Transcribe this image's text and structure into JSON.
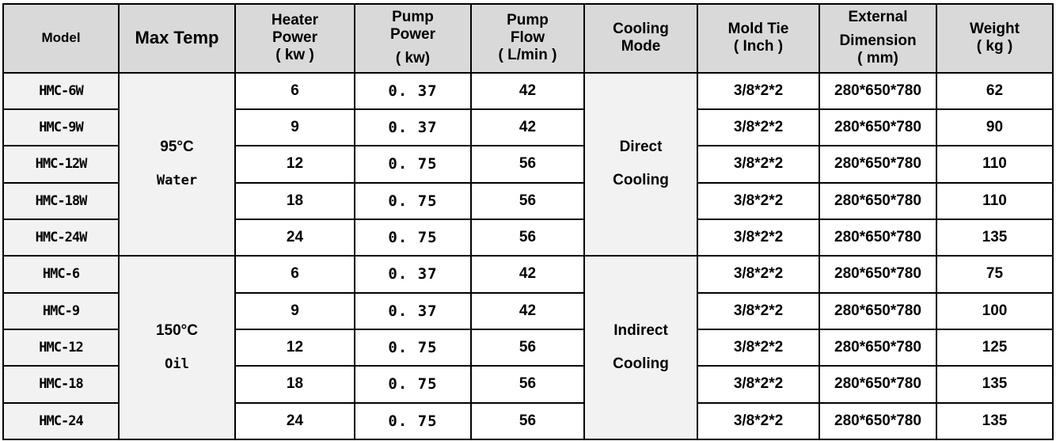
{
  "headers": {
    "model": "Model",
    "max_temp": "Max Temp",
    "heater_power": [
      "Heater",
      "Power",
      "( kw )"
    ],
    "pump_power": [
      "Pump",
      "Power",
      "( kw)"
    ],
    "pump_flow": [
      "Pump",
      "Flow",
      "( L/min )"
    ],
    "cooling_mode": [
      "Cooling",
      "Mode"
    ],
    "mold_tie": [
      "Mold Tie",
      "( Inch )"
    ],
    "external_dimension": [
      "External",
      "Dimension",
      "( mm)"
    ],
    "weight": [
      "Weight",
      "( kg )"
    ]
  },
  "groups": {
    "water": {
      "temp": "95°C",
      "medium": "Water",
      "cooling_line1": "Direct",
      "cooling_line2": "Cooling"
    },
    "oil": {
      "temp": "150°C",
      "medium": "Oil",
      "cooling_line1": "Indirect",
      "cooling_line2": "Cooling"
    }
  },
  "rows": [
    {
      "model": "HMC-6W",
      "heater": "6",
      "pump_power": "0. 37",
      "flow": "42",
      "mold_tie": "3/8*2*2",
      "dimension": "280*650*780",
      "weight": "62"
    },
    {
      "model": "HMC-9W",
      "heater": "9",
      "pump_power": "0. 37",
      "flow": "42",
      "mold_tie": "3/8*2*2",
      "dimension": "280*650*780",
      "weight": "90"
    },
    {
      "model": "HMC-12W",
      "heater": "12",
      "pump_power": "0. 75",
      "flow": "56",
      "mold_tie": "3/8*2*2",
      "dimension": "280*650*780",
      "weight": "110"
    },
    {
      "model": "HMC-18W",
      "heater": "18",
      "pump_power": "0. 75",
      "flow": "56",
      "mold_tie": "3/8*2*2",
      "dimension": "280*650*780",
      "weight": "110"
    },
    {
      "model": "HMC-24W",
      "heater": "24",
      "pump_power": "0. 75",
      "flow": "56",
      "mold_tie": "3/8*2*2",
      "dimension": "280*650*780",
      "weight": "135"
    },
    {
      "model": "HMC-6",
      "heater": "6",
      "pump_power": "0. 37",
      "flow": "42",
      "mold_tie": "3/8*2*2",
      "dimension": "280*650*780",
      "weight": "75"
    },
    {
      "model": "HMC-9",
      "heater": "9",
      "pump_power": "0. 37",
      "flow": "42",
      "mold_tie": "3/8*2*2",
      "dimension": "280*650*780",
      "weight": "100"
    },
    {
      "model": "HMC-12",
      "heater": "12",
      "pump_power": "0. 75",
      "flow": "56",
      "mold_tie": "3/8*2*2",
      "dimension": "280*650*780",
      "weight": "125"
    },
    {
      "model": "HMC-18",
      "heater": "18",
      "pump_power": "0. 75",
      "flow": "56",
      "mold_tie": "3/8*2*2",
      "dimension": "280*650*780",
      "weight": "135"
    },
    {
      "model": "HMC-24",
      "heater": "24",
      "pump_power": "0. 75",
      "flow": "56",
      "mold_tie": "3/8*2*2",
      "dimension": "280*650*780",
      "weight": "135"
    }
  ]
}
